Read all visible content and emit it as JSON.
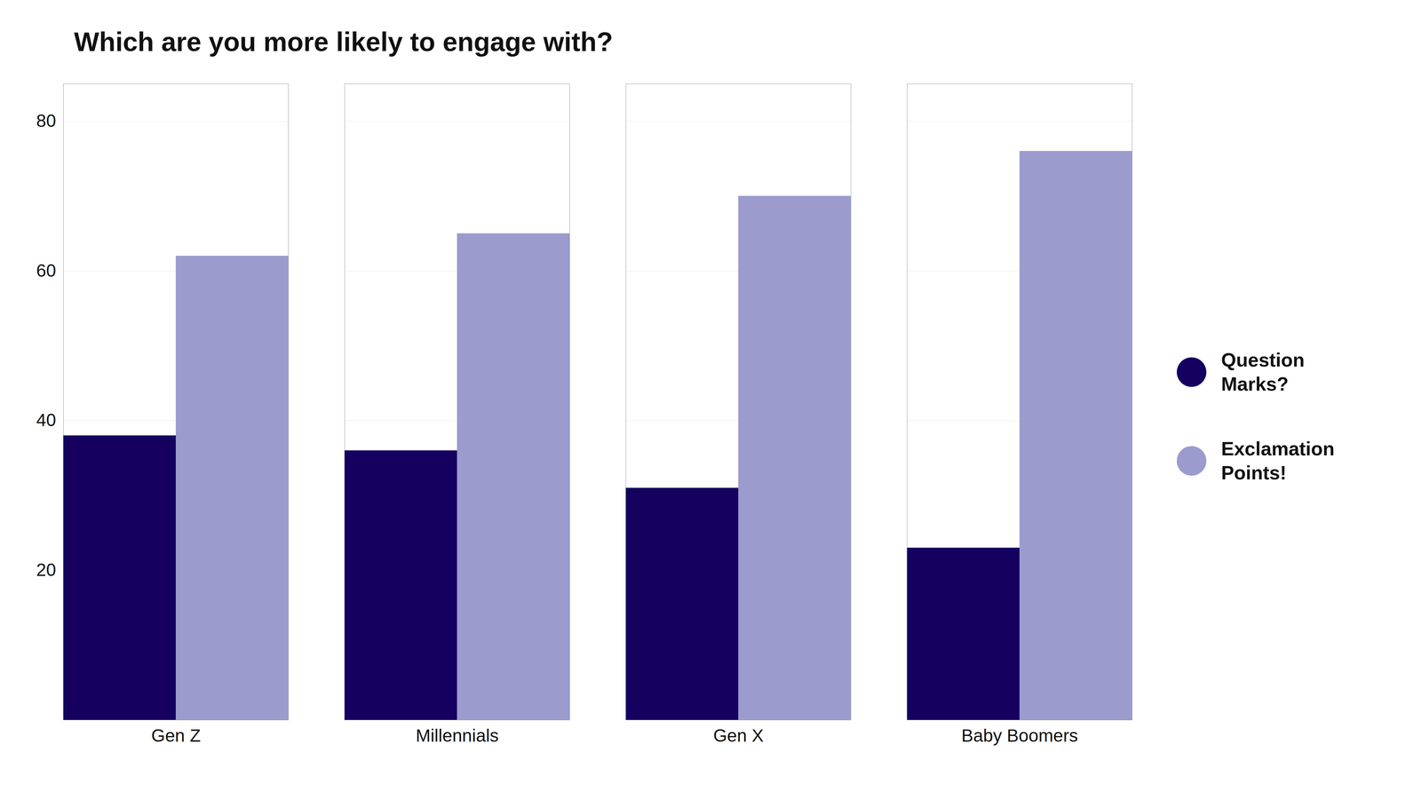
{
  "chart_data": {
    "type": "bar",
    "title": "Which are you more likely to engage with?",
    "categories": [
      "Gen Z",
      "Millennials",
      "Gen X",
      "Baby Boomers"
    ],
    "series": [
      {
        "name": "Question\nMarks?",
        "color": "#150060",
        "values": [
          38,
          36,
          31,
          23
        ]
      },
      {
        "name": "Exclamation\nPoints!",
        "color": "#9B9BCE",
        "values": [
          62,
          65,
          70,
          76
        ]
      }
    ],
    "ylim": [
      0,
      85
    ],
    "yticks": [
      20,
      40,
      60,
      80
    ],
    "grid": true,
    "legend": "right"
  }
}
